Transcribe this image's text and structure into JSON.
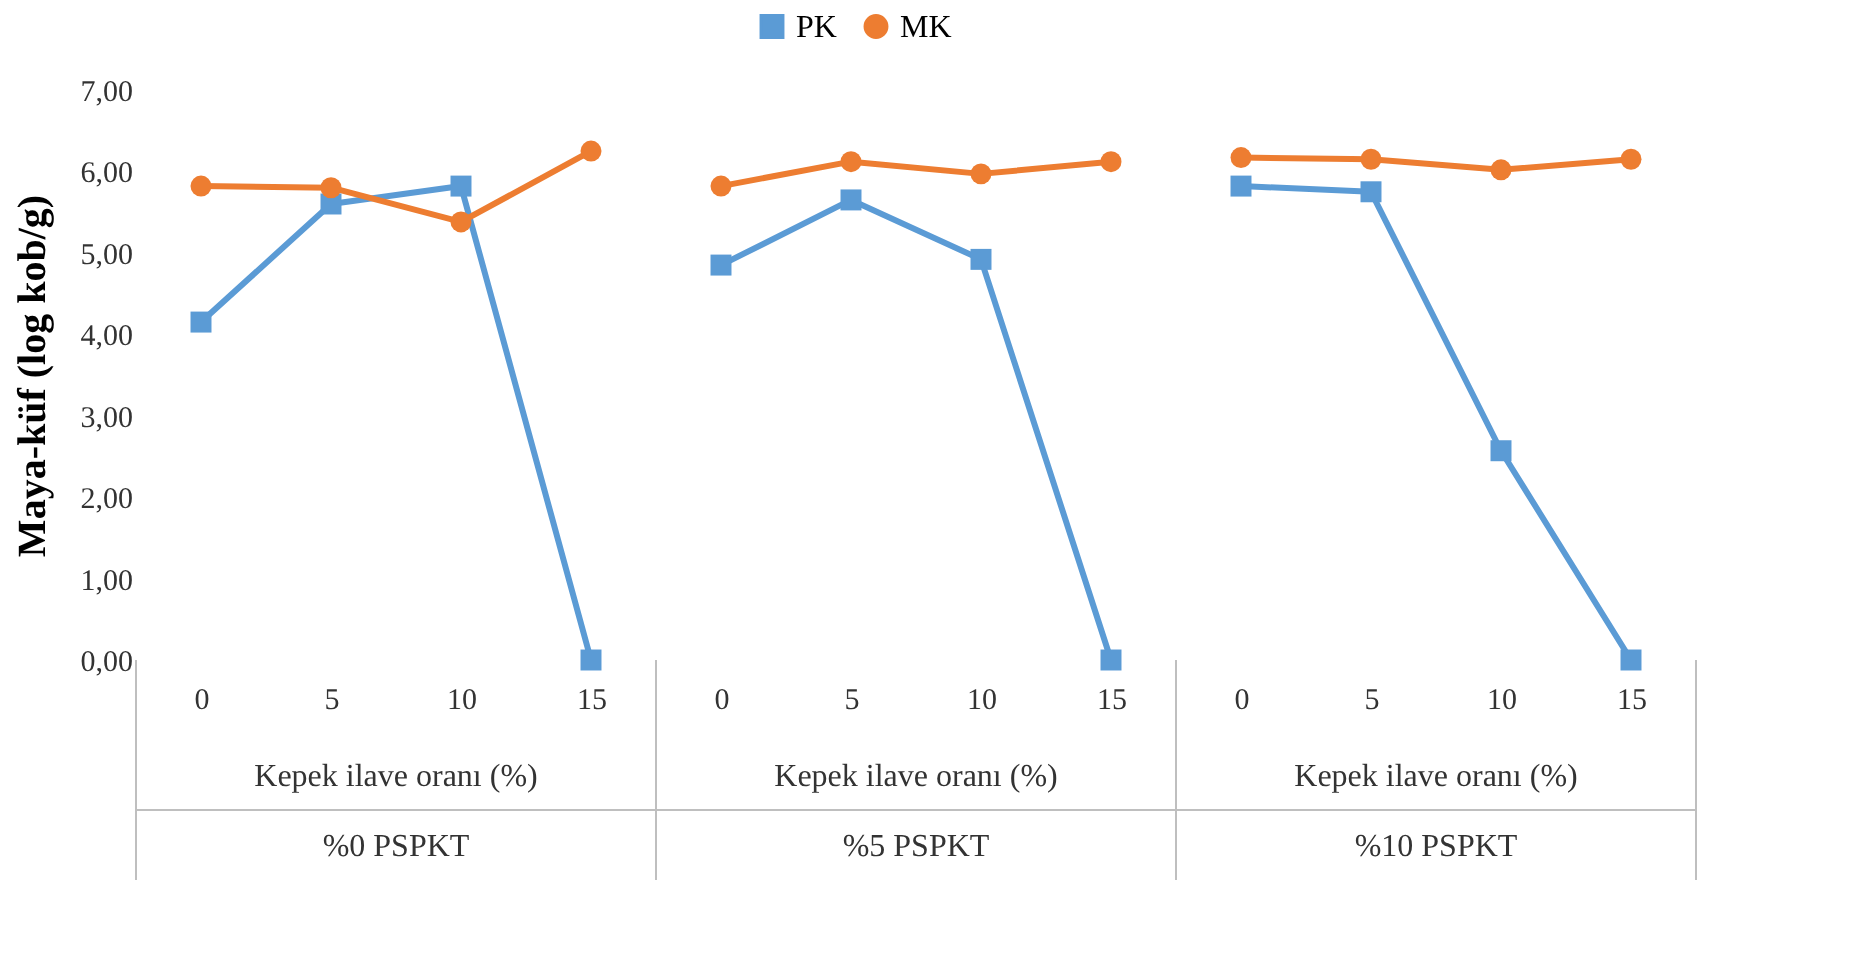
{
  "chart_data": {
    "type": "line",
    "ylabel": "Maya-küf  (log kob/g)",
    "xlabel": "Kepek ilave oranı (%)",
    "categories": [
      "0",
      "5",
      "10",
      "15",
      "0",
      "5",
      "10",
      "15",
      "0",
      "5",
      "10",
      "15"
    ],
    "annotations": [
      "%0 PSPKT",
      "%5 PSPKT",
      "%10 PSPKT"
    ],
    "series": [
      {
        "name": "PK",
        "color": "#5b9bd5",
        "marker": "square",
        "values": [
          4.15,
          5.6,
          5.82,
          0,
          4.85,
          5.65,
          4.92,
          0,
          5.82,
          5.75,
          2.57,
          0
        ]
      },
      {
        "name": "MK",
        "color": "#ed7d31",
        "marker": "circle",
        "values": [
          5.82,
          5.8,
          5.38,
          6.25,
          5.82,
          6.12,
          5.97,
          6.12,
          6.17,
          6.15,
          6.02,
          6.15
        ]
      }
    ],
    "ylim": [
      0,
      7
    ],
    "yticks": [
      {
        "value": 0,
        "label": "0,00"
      },
      {
        "value": 1,
        "label": "1,00"
      },
      {
        "value": 2,
        "label": "2,00"
      },
      {
        "value": 3,
        "label": "3,00"
      },
      {
        "value": 4,
        "label": "4,00"
      },
      {
        "value": 5,
        "label": "5,00"
      },
      {
        "value": 6,
        "label": "6,00"
      },
      {
        "value": 7,
        "label": "7,00"
      }
    ],
    "grid": false,
    "legend": "top"
  }
}
